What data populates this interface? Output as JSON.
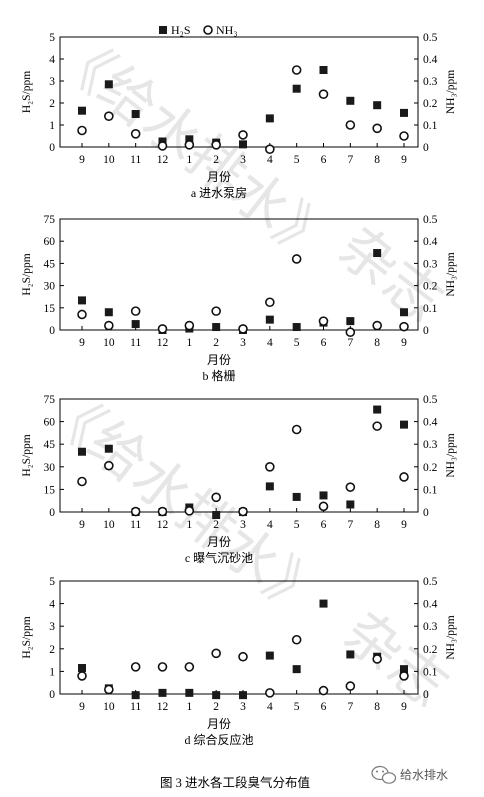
{
  "chart_data": [
    {
      "type": "scatter",
      "caption": "a 进水泵房",
      "xlabel": "月份",
      "categories": [
        "9",
        "10",
        "11",
        "12",
        "1",
        "2",
        "3",
        "4",
        "5",
        "6",
        "7",
        "8",
        "9"
      ],
      "ylabel_left": "H₂S/ppm",
      "ylabel_right": "NH₃/ppm",
      "ylim_left": [
        0,
        5
      ],
      "ylim_right": [
        0,
        0.5
      ],
      "yticks_left": [
        "0",
        "1",
        "2",
        "3",
        "4",
        "5"
      ],
      "yticks_right": [
        "0",
        "0.1",
        "0.2",
        "0.3",
        "0.4",
        "0.5"
      ],
      "legend": [
        "H₂S",
        "NH₃"
      ],
      "series": [
        {
          "name": "H₂S",
          "axis": "left",
          "marker": "filled-square",
          "values": [
            1.65,
            2.85,
            1.5,
            0.25,
            0.35,
            0.2,
            0.12,
            1.3,
            2.65,
            3.5,
            2.1,
            1.9,
            1.55
          ]
        },
        {
          "name": "NH₃",
          "axis": "right",
          "marker": "open-circle",
          "values": [
            0.075,
            0.14,
            0.06,
            0.005,
            0.01,
            0.01,
            0.055,
            -0.01,
            0.35,
            0.24,
            0.1,
            0.085,
            0.05
          ]
        }
      ]
    },
    {
      "type": "scatter",
      "caption": "b 格栅",
      "xlabel": "月份",
      "categories": [
        "9",
        "10",
        "11",
        "12",
        "1",
        "2",
        "3",
        "4",
        "5",
        "6",
        "7",
        "8",
        "9"
      ],
      "ylabel_left": "H₂S/ppm",
      "ylabel_right": "NH₃/ppm",
      "ylim_left": [
        0,
        75
      ],
      "ylim_right": [
        0,
        0.5
      ],
      "yticks_left": [
        "0",
        "15",
        "30",
        "45",
        "60",
        "75"
      ],
      "yticks_right": [
        "0",
        "0.1",
        "0.2",
        "0.3",
        "0.4",
        "0.5"
      ],
      "series": [
        {
          "name": "H₂S",
          "axis": "left",
          "marker": "filled-square",
          "values": [
            20,
            12,
            4,
            0,
            1,
            2,
            0,
            7,
            2,
            5,
            6,
            52,
            12
          ]
        },
        {
          "name": "NH₃",
          "axis": "right",
          "marker": "open-circle",
          "values": [
            0.07,
            0.02,
            0.085,
            0.005,
            0.02,
            0.085,
            0.005,
            0.125,
            0.32,
            0.04,
            -0.01,
            0.02,
            0.015
          ]
        }
      ]
    },
    {
      "type": "scatter",
      "caption": "c 曝气沉砂池",
      "xlabel": "月份",
      "categories": [
        "9",
        "10",
        "11",
        "12",
        "1",
        "2",
        "3",
        "4",
        "5",
        "6",
        "7",
        "8",
        "9"
      ],
      "ylabel_left": "H₂S/ppm",
      "ylabel_right": "NH₃/ppm",
      "ylim_left": [
        0,
        75
      ],
      "ylim_right": [
        0,
        0.5
      ],
      "yticks_left": [
        "0",
        "15",
        "30",
        "45",
        "60",
        "75"
      ],
      "yticks_right": [
        "0",
        "0.1",
        "0.2",
        "0.3",
        "0.4",
        "0.5"
      ],
      "series": [
        {
          "name": "H₂S",
          "axis": "left",
          "marker": "filled-square",
          "values": [
            40,
            42,
            0,
            0,
            3,
            -2,
            0,
            17,
            10,
            11,
            5,
            68,
            58
          ]
        },
        {
          "name": "NH₃",
          "axis": "right",
          "marker": "open-circle",
          "values": [
            0.135,
            0.205,
            0.002,
            0.002,
            0.005,
            0.065,
            0.002,
            0.2,
            0.365,
            0.025,
            0.11,
            0.38,
            0.155
          ]
        }
      ]
    },
    {
      "type": "scatter",
      "caption": "d 综合反应池",
      "xlabel": "月份",
      "categories": [
        "9",
        "10",
        "11",
        "12",
        "1",
        "2",
        "3",
        "4",
        "5",
        "6",
        "7",
        "8",
        "9"
      ],
      "ylabel_left": "H₂S/ppm",
      "ylabel_right": "NH₃/ppm",
      "ylim_left": [
        0,
        5
      ],
      "ylim_right": [
        0,
        0.5
      ],
      "yticks_left": [
        "0",
        "1",
        "2",
        "3",
        "4",
        "5"
      ],
      "yticks_right": [
        "0",
        "0.1",
        "0.2",
        "0.3",
        "0.4",
        "0.5"
      ],
      "series": [
        {
          "name": "H₂S",
          "axis": "left",
          "marker": "filled-square",
          "values": [
            1.15,
            0.25,
            -0.05,
            0.05,
            0.05,
            -0.05,
            -0.05,
            1.7,
            1.1,
            4.0,
            1.75,
            1.65,
            1.1
          ]
        },
        {
          "name": "NH₃",
          "axis": "right",
          "marker": "open-circle",
          "values": [
            0.08,
            0.02,
            0.12,
            0.12,
            0.12,
            0.18,
            0.165,
            0.005,
            0.24,
            0.015,
            0.035,
            0.155,
            0.08
          ]
        }
      ]
    }
  ],
  "figure_caption": "图 3   进水各工段臭气分布值",
  "watermark": {
    "brand": "给水排水",
    "icon": "wechat-icon",
    "text_main": "《给水排水》",
    "text_side": "杂志",
    "color": "#e6e6e6"
  }
}
